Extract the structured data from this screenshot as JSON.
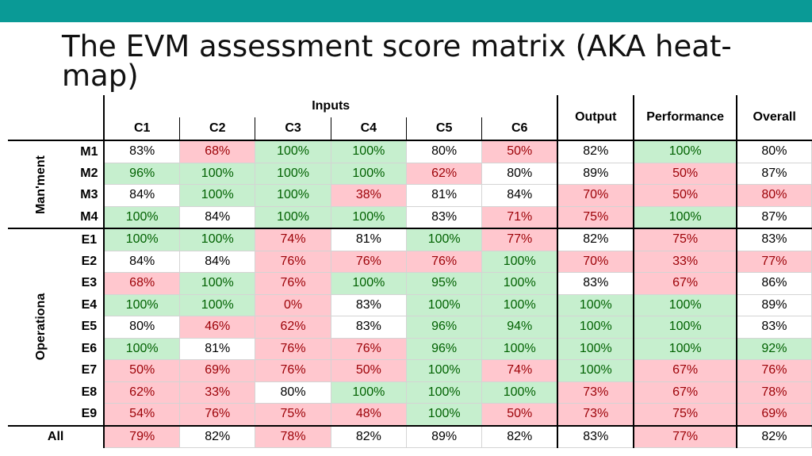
{
  "title": "The EVM assessment score matrix (AKA heat-map)",
  "colors": {
    "top_bar": "#0a9a96",
    "good_bg": "#c6efce",
    "good_fg": "#006100",
    "bad_bg": "#ffc7ce",
    "bad_fg": "#9c0006"
  },
  "matrix": {
    "inputs_label": "Inputs",
    "columns": [
      "C1",
      "C2",
      "C3",
      "C4",
      "C5",
      "C6",
      "Output",
      "Performance",
      "Overall"
    ],
    "groups": [
      {
        "label": "Man'ment",
        "rows": [
          {
            "id": "M1",
            "values": [
              [
                "83%",
                "n"
              ],
              [
                "68%",
                "b"
              ],
              [
                "100%",
                "g"
              ],
              [
                "100%",
                "g"
              ],
              [
                "80%",
                "n"
              ],
              [
                "50%",
                "b"
              ],
              [
                "82%",
                "n"
              ],
              [
                "100%",
                "g"
              ],
              [
                "80%",
                "n"
              ]
            ]
          },
          {
            "id": "M2",
            "values": [
              [
                "96%",
                "g"
              ],
              [
                "100%",
                "g"
              ],
              [
                "100%",
                "g"
              ],
              [
                "100%",
                "g"
              ],
              [
                "62%",
                "b"
              ],
              [
                "80%",
                "n"
              ],
              [
                "89%",
                "n"
              ],
              [
                "50%",
                "b"
              ],
              [
                "87%",
                "n"
              ]
            ]
          },
          {
            "id": "M3",
            "values": [
              [
                "84%",
                "n"
              ],
              [
                "100%",
                "g"
              ],
              [
                "100%",
                "g"
              ],
              [
                "38%",
                "b"
              ],
              [
                "81%",
                "n"
              ],
              [
                "84%",
                "n"
              ],
              [
                "70%",
                "b"
              ],
              [
                "50%",
                "b"
              ],
              [
                "80%",
                "b"
              ]
            ]
          },
          {
            "id": "M4",
            "values": [
              [
                "100%",
                "g"
              ],
              [
                "84%",
                "n"
              ],
              [
                "100%",
                "g"
              ],
              [
                "100%",
                "g"
              ],
              [
                "83%",
                "n"
              ],
              [
                "71%",
                "b"
              ],
              [
                "75%",
                "b"
              ],
              [
                "100%",
                "g"
              ],
              [
                "87%",
                "n"
              ]
            ]
          }
        ]
      },
      {
        "label": "Operationa",
        "rows": [
          {
            "id": "E1",
            "values": [
              [
                "100%",
                "g"
              ],
              [
                "100%",
                "g"
              ],
              [
                "74%",
                "b"
              ],
              [
                "81%",
                "n"
              ],
              [
                "100%",
                "g"
              ],
              [
                "77%",
                "b"
              ],
              [
                "82%",
                "n"
              ],
              [
                "75%",
                "b"
              ],
              [
                "83%",
                "n"
              ]
            ]
          },
          {
            "id": "E2",
            "values": [
              [
                "84%",
                "n"
              ],
              [
                "84%",
                "n"
              ],
              [
                "76%",
                "b"
              ],
              [
                "76%",
                "b"
              ],
              [
                "76%",
                "b"
              ],
              [
                "100%",
                "g"
              ],
              [
                "70%",
                "b"
              ],
              [
                "33%",
                "b"
              ],
              [
                "77%",
                "b"
              ]
            ]
          },
          {
            "id": "E3",
            "values": [
              [
                "68%",
                "b"
              ],
              [
                "100%",
                "g"
              ],
              [
                "76%",
                "b"
              ],
              [
                "100%",
                "g"
              ],
              [
                "95%",
                "g"
              ],
              [
                "100%",
                "g"
              ],
              [
                "83%",
                "n"
              ],
              [
                "67%",
                "b"
              ],
              [
                "86%",
                "n"
              ]
            ]
          },
          {
            "id": "E4",
            "values": [
              [
                "100%",
                "g"
              ],
              [
                "100%",
                "g"
              ],
              [
                "0%",
                "b"
              ],
              [
                "83%",
                "n"
              ],
              [
                "100%",
                "g"
              ],
              [
                "100%",
                "g"
              ],
              [
                "100%",
                "g"
              ],
              [
                "100%",
                "g"
              ],
              [
                "89%",
                "n"
              ]
            ]
          },
          {
            "id": "E5",
            "values": [
              [
                "80%",
                "n"
              ],
              [
                "46%",
                "b"
              ],
              [
                "62%",
                "b"
              ],
              [
                "83%",
                "n"
              ],
              [
                "96%",
                "g"
              ],
              [
                "94%",
                "g"
              ],
              [
                "100%",
                "g"
              ],
              [
                "100%",
                "g"
              ],
              [
                "83%",
                "n"
              ]
            ]
          },
          {
            "id": "E6",
            "values": [
              [
                "100%",
                "g"
              ],
              [
                "81%",
                "n"
              ],
              [
                "76%",
                "b"
              ],
              [
                "76%",
                "b"
              ],
              [
                "96%",
                "g"
              ],
              [
                "100%",
                "g"
              ],
              [
                "100%",
                "g"
              ],
              [
                "100%",
                "g"
              ],
              [
                "92%",
                "g"
              ]
            ]
          },
          {
            "id": "E7",
            "values": [
              [
                "50%",
                "b"
              ],
              [
                "69%",
                "b"
              ],
              [
                "76%",
                "b"
              ],
              [
                "50%",
                "b"
              ],
              [
                "100%",
                "g"
              ],
              [
                "74%",
                "b"
              ],
              [
                "100%",
                "g"
              ],
              [
                "67%",
                "b"
              ],
              [
                "76%",
                "b"
              ]
            ]
          },
          {
            "id": "E8",
            "values": [
              [
                "62%",
                "b"
              ],
              [
                "33%",
                "b"
              ],
              [
                "80%",
                "n"
              ],
              [
                "100%",
                "g"
              ],
              [
                "100%",
                "g"
              ],
              [
                "100%",
                "g"
              ],
              [
                "73%",
                "b"
              ],
              [
                "67%",
                "b"
              ],
              [
                "78%",
                "b"
              ]
            ]
          },
          {
            "id": "E9",
            "values": [
              [
                "54%",
                "b"
              ],
              [
                "76%",
                "b"
              ],
              [
                "75%",
                "b"
              ],
              [
                "48%",
                "b"
              ],
              [
                "100%",
                "g"
              ],
              [
                "50%",
                "b"
              ],
              [
                "73%",
                "b"
              ],
              [
                "75%",
                "b"
              ],
              [
                "69%",
                "b"
              ]
            ]
          }
        ]
      }
    ],
    "all_row": {
      "id": "All",
      "values": [
        [
          "79%",
          "b"
        ],
        [
          "82%",
          "n"
        ],
        [
          "78%",
          "b"
        ],
        [
          "82%",
          "n"
        ],
        [
          "89%",
          "n"
        ],
        [
          "82%",
          "n"
        ],
        [
          "83%",
          "n"
        ],
        [
          "77%",
          "b"
        ],
        [
          "82%",
          "n"
        ]
      ]
    }
  }
}
